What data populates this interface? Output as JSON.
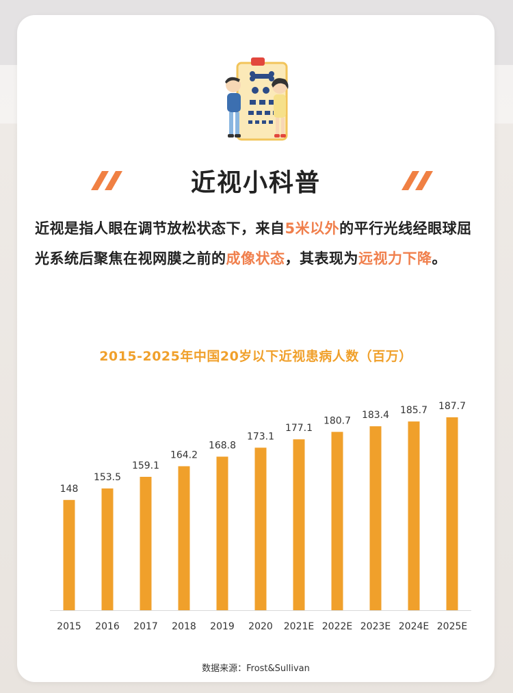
{
  "header": {
    "title": "近视小科普"
  },
  "intro": {
    "p1": "近视是指人眼在调节放松状态下，来自",
    "h1": "5米以外",
    "p2": "的平行光线经眼球屈光系统后聚焦在视网膜之前的",
    "h2": "成像状态",
    "p3": "，其表现为",
    "h3": "远视力下降",
    "p4": "。"
  },
  "source": {
    "label": "数据来源：",
    "value": "Frost&Sullivan"
  },
  "colors": {
    "bar": "#f0a02b",
    "highlight": "#f07f4c",
    "accent_slash": "#f08043"
  },
  "chart_data": {
    "type": "bar",
    "title": "2015-2025年中国20岁以下近视患病人数（百万）",
    "categories": [
      "2015",
      "2016",
      "2017",
      "2018",
      "2019",
      "2020",
      "2021E",
      "2022E",
      "2023E",
      "2024E",
      "2025E"
    ],
    "values": [
      148,
      153.5,
      159.1,
      164.2,
      168.8,
      173.1,
      177.1,
      180.7,
      183.4,
      185.7,
      187.7
    ],
    "value_labels": [
      "148",
      "153.5",
      "159.1",
      "164.2",
      "168.8",
      "173.1",
      "177.1",
      "180.7",
      "183.4",
      "185.7",
      "187.7"
    ],
    "xlabel": "",
    "ylabel": "",
    "ylim": [
      95,
      190
    ],
    "grid": false,
    "legend": "none"
  }
}
